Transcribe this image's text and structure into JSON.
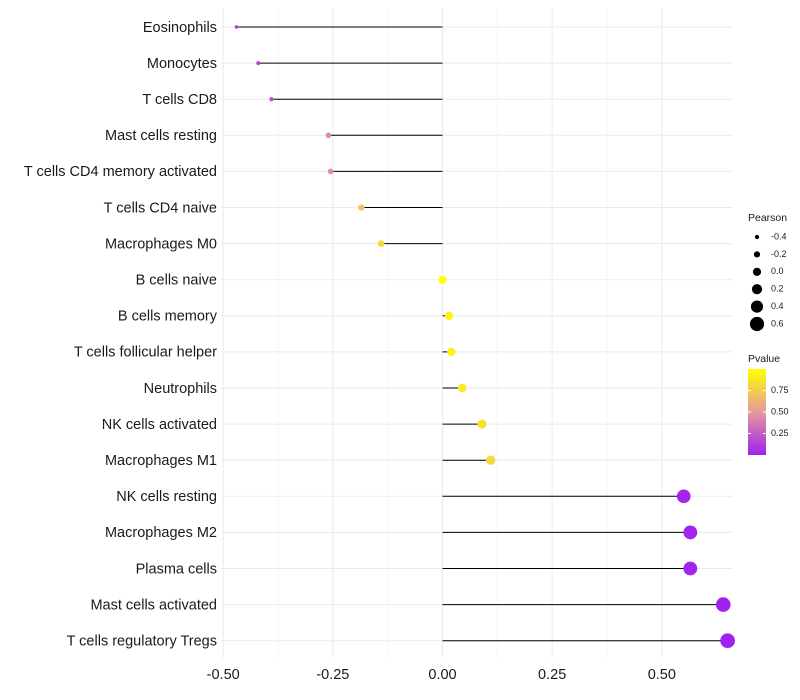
{
  "chart_data": {
    "type": "lollipop",
    "title": "",
    "xlabel": "",
    "ylabel": "",
    "xlim": [
      -0.505,
      0.66
    ],
    "x_ticks": [
      -0.5,
      -0.25,
      0.0,
      0.25,
      0.5
    ],
    "x_tick_labels": [
      "-0.50",
      "-0.25",
      "0.00",
      "0.25",
      "0.50"
    ],
    "grid": true,
    "categories": [
      "Eosinophils",
      "Monocytes",
      "T cells CD8",
      "Mast cells resting",
      "T cells CD4 memory activated",
      "T cells CD4 naive",
      "Macrophages M0",
      "B cells naive",
      "B cells memory",
      "T cells follicular helper",
      "Neutrophils",
      "NK cells activated",
      "Macrophages M1",
      "NK cells resting",
      "Macrophages M2",
      "Plasma cells",
      "Mast cells activated",
      "T cells regulatory  Tregs"
    ],
    "pearson": [
      -0.47,
      -0.42,
      -0.39,
      -0.26,
      -0.255,
      -0.185,
      -0.14,
      0.0,
      0.015,
      0.02,
      0.045,
      0.09,
      0.11,
      0.55,
      0.565,
      0.565,
      0.64,
      0.65
    ],
    "pvalue": [
      0.1,
      0.15,
      0.2,
      0.45,
      0.45,
      0.7,
      0.8,
      1.0,
      0.95,
      0.95,
      0.9,
      0.85,
      0.8,
      0.02,
      0.02,
      0.02,
      0.01,
      0.01
    ],
    "legend_size": {
      "title": "Pearson",
      "values": [
        -0.4,
        -0.2,
        0.0,
        0.2,
        0.4,
        0.6
      ],
      "labels": [
        "-0.4",
        "-0.2",
        "0.0",
        "0.2",
        "0.4",
        "0.6"
      ]
    },
    "legend_color": {
      "title": "Pvalue",
      "ticks": [
        0.75,
        0.5,
        0.25
      ],
      "tick_labels": [
        "0.75",
        "0.50",
        "0.25"
      ],
      "range": [
        0.0,
        1.0
      ],
      "low_color": "#a020f0",
      "mid_color": "#e59a9c",
      "high_color": "#ffff00"
    },
    "line_color": "#000000",
    "grid_color": "#ebebeb"
  }
}
